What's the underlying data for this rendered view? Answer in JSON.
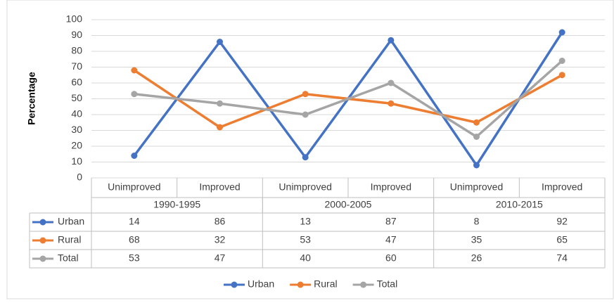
{
  "chart_data": {
    "type": "line",
    "y_label": "Percentage",
    "categories": [
      "Unimproved",
      "Improved",
      "Unimproved",
      "Improved",
      "Unimproved",
      "Improved"
    ],
    "groups": [
      "1990-1995",
      "2000-2005",
      "2010-2015"
    ],
    "series": [
      {
        "name": "Urban",
        "color": "#4472c4",
        "values": [
          14,
          86,
          13,
          87,
          8,
          92
        ]
      },
      {
        "name": "Rural",
        "color": "#ed7d31",
        "values": [
          68,
          32,
          53,
          47,
          35,
          65
        ]
      },
      {
        "name": "Total",
        "color": "#a5a5a5",
        "values": [
          53,
          47,
          40,
          60,
          26,
          74
        ]
      }
    ],
    "ylim": [
      0,
      100
    ],
    "yticks": [
      0,
      10,
      20,
      30,
      40,
      50,
      60,
      70,
      80,
      90,
      100
    ],
    "grid": true,
    "legend": "bottom",
    "data_table": true
  }
}
